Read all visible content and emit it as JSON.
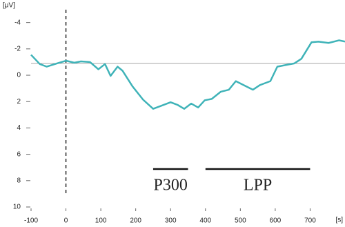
{
  "chart_data": {
    "type": "line",
    "y_unit": "[μV]",
    "x_unit": "[s]",
    "x": [
      -100,
      -75,
      -55,
      -25,
      0,
      24,
      43,
      69,
      93,
      112,
      128,
      148,
      162,
      191,
      221,
      250,
      270,
      300,
      320,
      339,
      359,
      379,
      398,
      418,
      444,
      467,
      487,
      517,
      536,
      556,
      586,
      606,
      635,
      655,
      675,
      704,
      724,
      753,
      783,
      800
    ],
    "series": [
      {
        "color": "#3fb3b8",
        "values": [
          -1.55,
          -0.85,
          -0.65,
          -0.9,
          -1.1,
          -0.95,
          -1.05,
          -1.0,
          -0.45,
          -0.85,
          0.05,
          -0.65,
          -0.35,
          0.85,
          1.85,
          2.55,
          2.35,
          2.05,
          2.25,
          2.55,
          2.15,
          2.45,
          1.9,
          1.8,
          1.25,
          1.1,
          0.45,
          0.85,
          1.1,
          0.75,
          0.45,
          -0.65,
          -0.8,
          -0.9,
          -1.25,
          -2.5,
          -2.55,
          -2.45,
          -2.65,
          -2.55
        ]
      }
    ],
    "xlim": [
      -100,
      800
    ],
    "xticks": [
      -100,
      0,
      100,
      200,
      300,
      400,
      500,
      600,
      700
    ],
    "ylim": [
      -5.5,
      10
    ],
    "yticks": [
      -4,
      -2,
      0,
      2,
      4,
      6,
      8,
      10
    ],
    "y_inverted": true,
    "reference_line": -0.9,
    "onset_line": 0,
    "annotations": [
      {
        "label": "P300",
        "start": 250,
        "end": 350
      },
      {
        "label": "LPP",
        "start": 400,
        "end": 700
      }
    ]
  }
}
